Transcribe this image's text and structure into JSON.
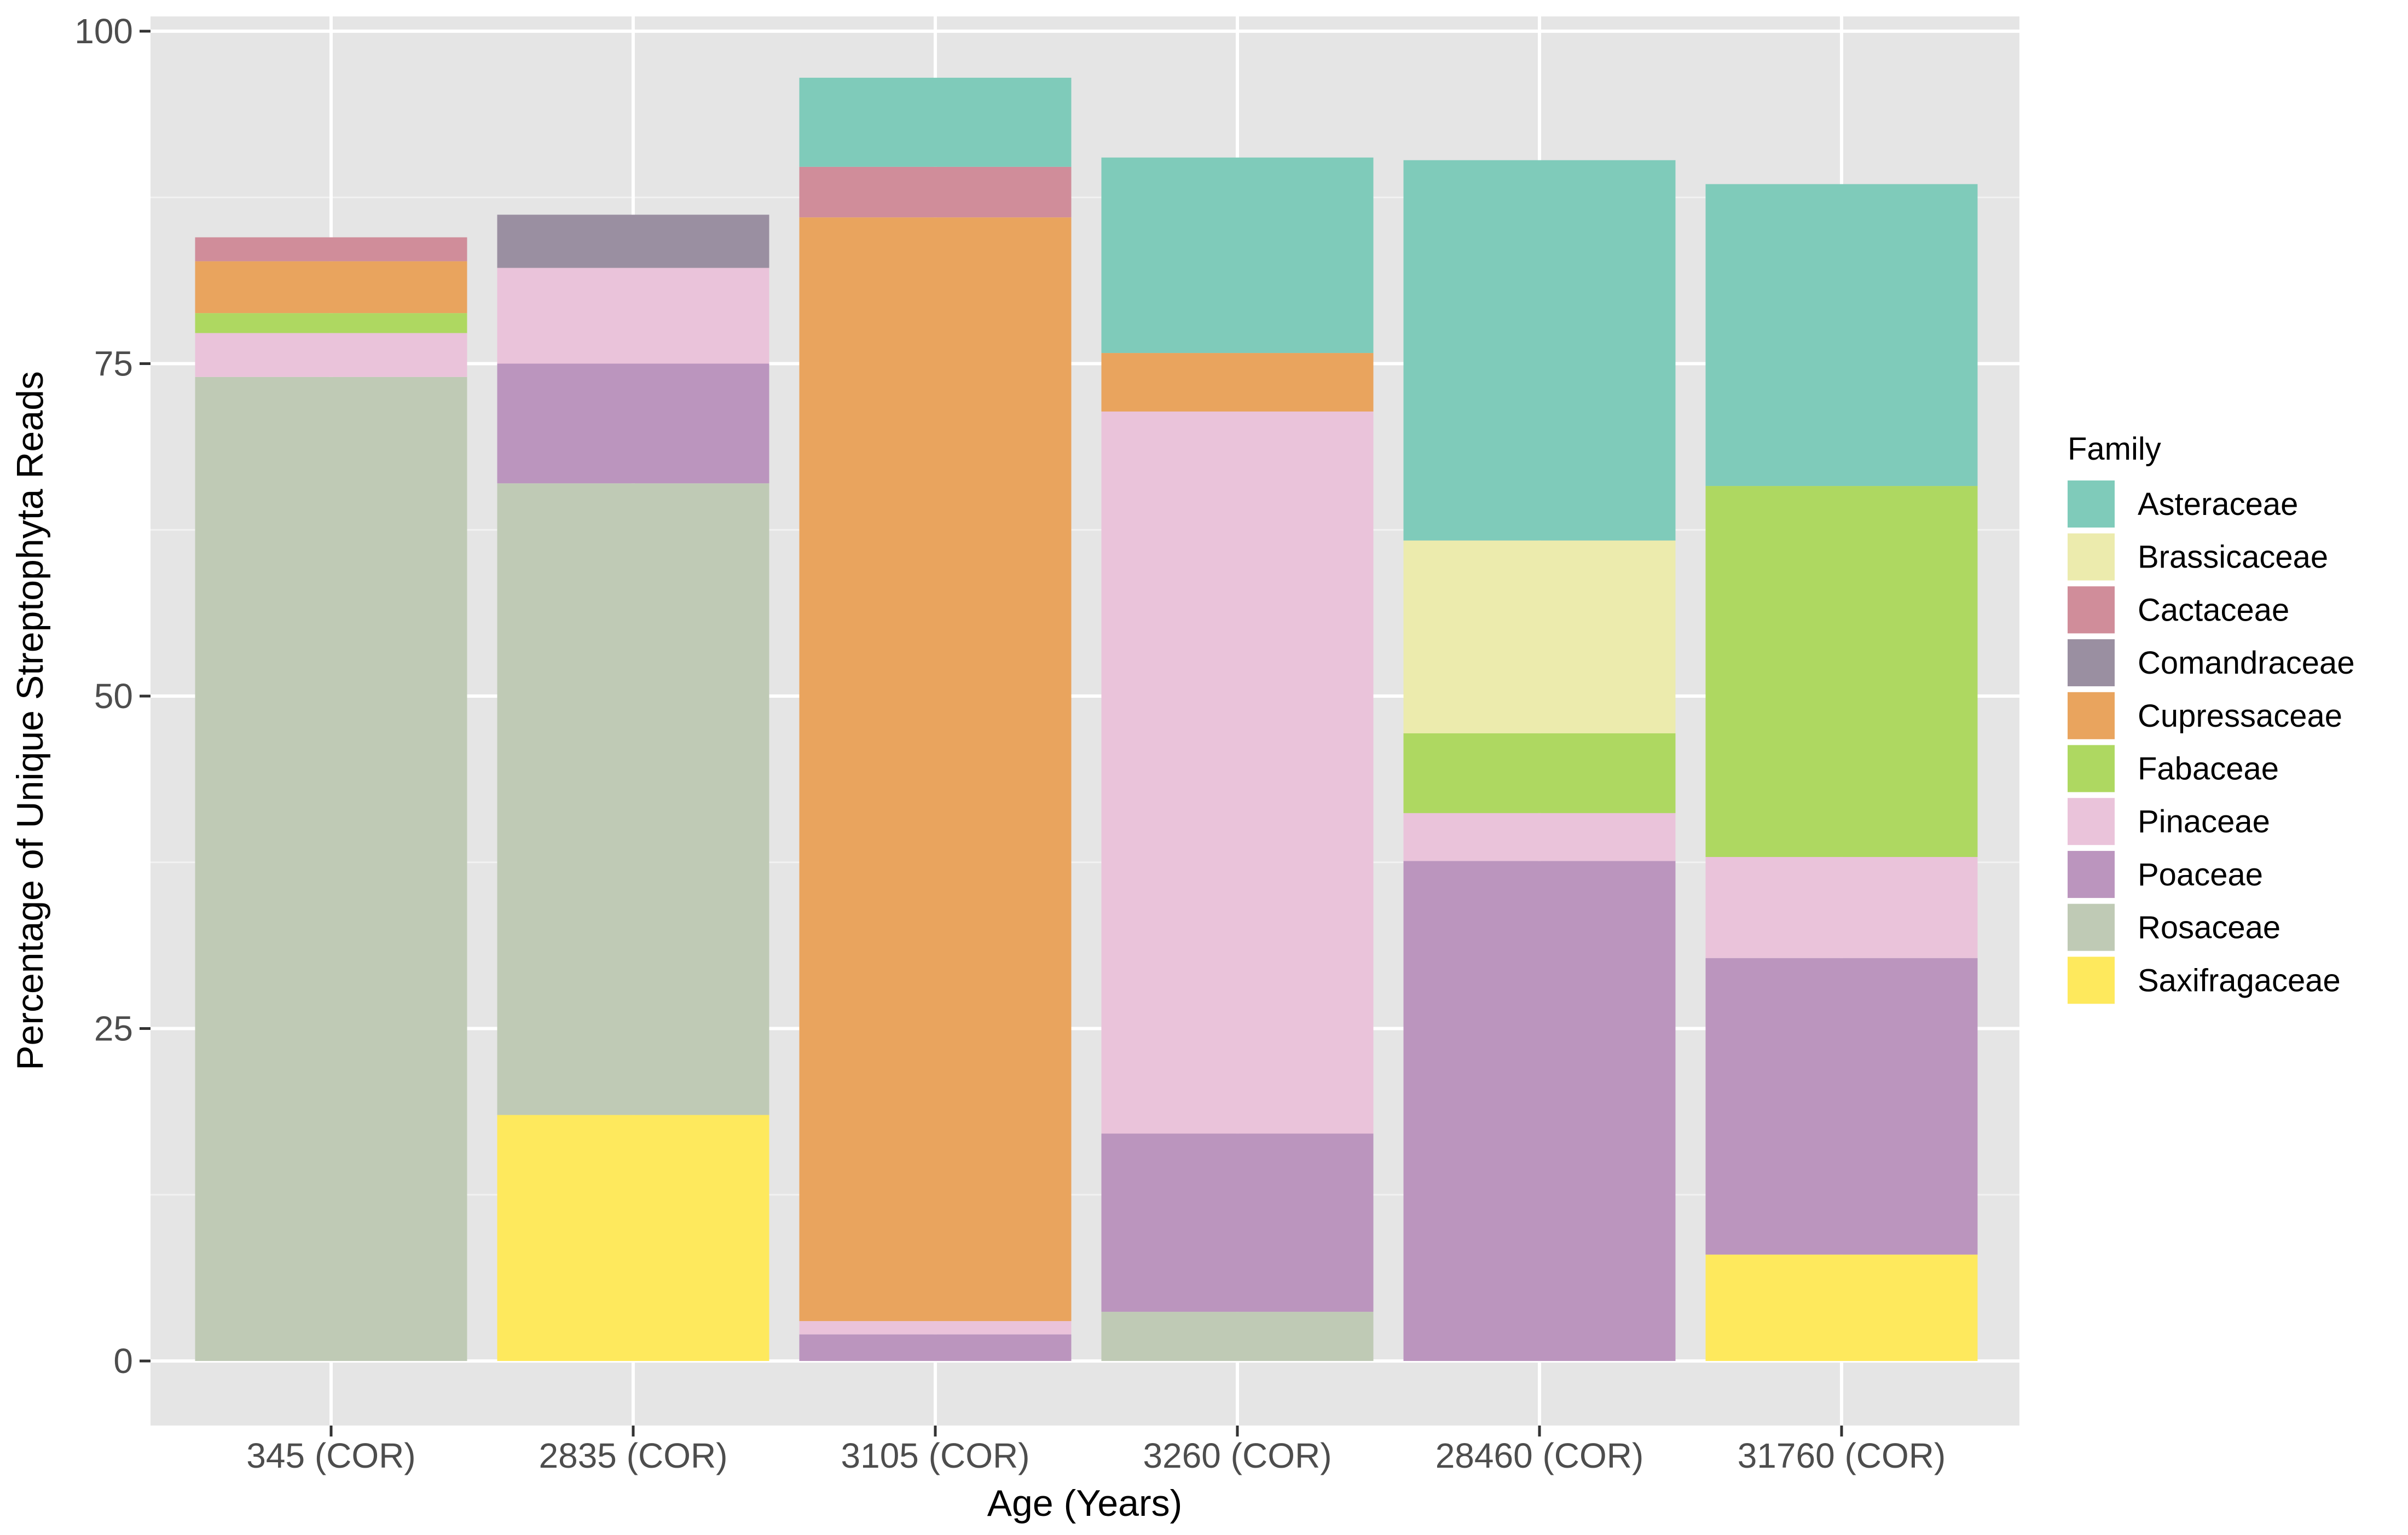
{
  "chart_data": {
    "type": "bar",
    "stacked": true,
    "xlabel": "Age (Years)",
    "ylabel": "Percentage of Unique Streptophyta Reads",
    "ylim": [
      0,
      100
    ],
    "yticks": [
      0,
      25,
      50,
      75,
      100
    ],
    "grid": true,
    "legend_title": "Family",
    "legend_position": "right",
    "categories": [
      "345 (COR)",
      "2835 (COR)",
      "3105 (COR)",
      "3260 (COR)",
      "28460 (COR)",
      "31760 (COR)"
    ],
    "series": [
      {
        "name": "Saxifragaceae",
        "color": "#FEE95D",
        "values": [
          0,
          18.5,
          0,
          0,
          0,
          8.0
        ]
      },
      {
        "name": "Rosaceae",
        "color": "#BFCAB5",
        "values": [
          74.0,
          47.5,
          0,
          3.7,
          0,
          0
        ]
      },
      {
        "name": "Poaceae",
        "color": "#BB95BE",
        "values": [
          0,
          9.0,
          2.0,
          13.4,
          37.6,
          22.3
        ]
      },
      {
        "name": "Pinaceae",
        "color": "#EAC3DA",
        "values": [
          3.3,
          7.2,
          1.0,
          54.3,
          3.6,
          7.6
        ]
      },
      {
        "name": "Fabaceae",
        "color": "#AED861",
        "values": [
          1.5,
          0,
          0,
          0,
          6.0,
          27.9
        ]
      },
      {
        "name": "Cupressaceae",
        "color": "#E9A45E",
        "values": [
          3.9,
          0,
          83.0,
          4.4,
          0,
          0
        ]
      },
      {
        "name": "Comandraceae",
        "color": "#9A8FA1",
        "values": [
          0,
          4.0,
          0,
          0,
          0,
          0
        ]
      },
      {
        "name": "Cactaceae",
        "color": "#D08D9A",
        "values": [
          1.8,
          0,
          3.8,
          0,
          0,
          0
        ]
      },
      {
        "name": "Brassicaceae",
        "color": "#ECEBAD",
        "values": [
          0,
          0,
          0,
          0,
          14.5,
          0
        ]
      },
      {
        "name": "Asteraceae",
        "color": "#7FCBBA",
        "values": [
          0,
          0,
          6.7,
          14.7,
          28.6,
          22.7
        ]
      }
    ],
    "legend_order": [
      "Asteraceae",
      "Brassicaceae",
      "Cactaceae",
      "Comandraceae",
      "Cupressaceae",
      "Fabaceae",
      "Pinaceae",
      "Poaceae",
      "Rosaceae",
      "Saxifragaceae"
    ]
  }
}
